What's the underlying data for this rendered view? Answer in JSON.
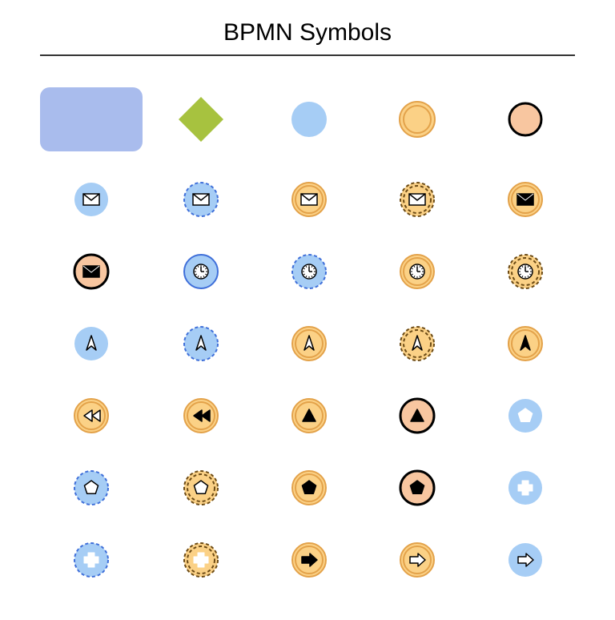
{
  "title": "BPMN Symbols",
  "colors": {
    "blue_fill": "#a9bced",
    "blue_bg": "#a6cdf5",
    "blue_stroke": "#3f6fd9",
    "green_fill": "#a7c23f",
    "orange_bg": "#fbd186",
    "orange_inner": "#fbd186",
    "orange_stroke": "#e3a24a",
    "peach_fill": "#f8c6a0",
    "black": "#000000",
    "white": "#ffffff"
  },
  "grid": {
    "cols": 5,
    "rows": 7,
    "row0_height": 110,
    "rowN_height": 90
  },
  "symbols": [
    [
      {
        "name": "task-activity",
        "type": "task",
        "fill": "#a9bced",
        "rx": 12,
        "w": 128,
        "h": 80
      },
      {
        "name": "gateway",
        "type": "diamond",
        "fill": "#a7c23f",
        "size": 56
      },
      {
        "name": "start-event",
        "type": "circle",
        "fill": "#a6cdf5",
        "stroke": null,
        "r": 22
      },
      {
        "name": "intermediate-event",
        "type": "double-circle",
        "fill": "#fbd186",
        "stroke": "#e3a24a",
        "r": 22,
        "inner_r": 17
      },
      {
        "name": "end-event",
        "type": "circle",
        "fill": "#f8c6a0",
        "stroke": "#000000",
        "stroke_w": 3,
        "r": 20
      }
    ],
    [
      {
        "name": "message-start",
        "type": "event",
        "bg": "blue",
        "border": "solid-faint",
        "icon": "envelope",
        "icon_fill": "#ffffff",
        "icon_stroke": "#000000"
      },
      {
        "name": "message-start-noninterrupt",
        "type": "event",
        "bg": "blue",
        "border": "dashed-blue",
        "icon": "envelope",
        "icon_fill": "#ffffff",
        "icon_stroke": "#000000"
      },
      {
        "name": "message-intermediate-catch",
        "type": "event",
        "bg": "orange",
        "border": "double-orange",
        "icon": "envelope",
        "icon_fill": "#ffffff",
        "icon_stroke": "#000000"
      },
      {
        "name": "message-intermediate-noninterrupt",
        "type": "event",
        "bg": "orange",
        "border": "double-dashed",
        "icon": "envelope",
        "icon_fill": "#ffffff",
        "icon_stroke": "#000000"
      },
      {
        "name": "message-intermediate-throw",
        "type": "event",
        "bg": "orange",
        "border": "double-orange",
        "icon": "envelope",
        "icon_fill": "#000000",
        "icon_stroke": "#000000"
      }
    ],
    [
      {
        "name": "message-end",
        "type": "event",
        "bg": "peach",
        "border": "solid-black-thick",
        "icon": "envelope",
        "icon_fill": "#000000",
        "icon_stroke": "#000000"
      },
      {
        "name": "timer-start",
        "type": "event",
        "bg": "blue",
        "border": "solid-blue",
        "icon": "clock",
        "icon_fill": "#ffffff",
        "icon_stroke": "#000000"
      },
      {
        "name": "timer-start-noninterrupt",
        "type": "event",
        "bg": "blue",
        "border": "dashed-blue",
        "icon": "clock",
        "icon_fill": "#ffffff",
        "icon_stroke": "#000000"
      },
      {
        "name": "timer-intermediate",
        "type": "event",
        "bg": "orange",
        "border": "double-orange",
        "icon": "clock",
        "icon_fill": "#ffffff",
        "icon_stroke": "#000000"
      },
      {
        "name": "timer-intermediate-noninterrupt",
        "type": "event",
        "bg": "orange",
        "border": "double-dashed",
        "icon": "clock",
        "icon_fill": "#ffffff",
        "icon_stroke": "#000000"
      }
    ],
    [
      {
        "name": "signal-start",
        "type": "event",
        "bg": "blue",
        "border": "solid-faint",
        "icon": "compass",
        "icon_fill": "#ffffff",
        "icon_stroke": "#000000"
      },
      {
        "name": "signal-start-noninterrupt",
        "type": "event",
        "bg": "blue",
        "border": "dashed-blue",
        "icon": "compass",
        "icon_fill": "#ffffff",
        "icon_stroke": "#000000"
      },
      {
        "name": "signal-intermediate-catch",
        "type": "event",
        "bg": "orange",
        "border": "double-orange",
        "icon": "compass",
        "icon_fill": "#ffffff",
        "icon_stroke": "#000000"
      },
      {
        "name": "signal-intermediate-noninterrupt",
        "type": "event",
        "bg": "orange",
        "border": "double-dashed",
        "icon": "compass",
        "icon_fill": "#ffffff",
        "icon_stroke": "#000000"
      },
      {
        "name": "signal-intermediate-throw",
        "type": "event",
        "bg": "orange",
        "border": "double-orange",
        "icon": "compass",
        "icon_fill": "#000000",
        "icon_stroke": "#000000"
      }
    ],
    [
      {
        "name": "compensation-catch",
        "type": "event",
        "bg": "orange",
        "border": "double-orange",
        "icon": "rewind",
        "icon_fill": "#ffffff",
        "icon_stroke": "#000000"
      },
      {
        "name": "compensation-throw",
        "type": "event",
        "bg": "orange",
        "border": "double-orange",
        "icon": "rewind",
        "icon_fill": "#000000",
        "icon_stroke": "#000000"
      },
      {
        "name": "escalation-throw",
        "type": "event",
        "bg": "orange",
        "border": "double-orange",
        "icon": "triangle-up",
        "icon_fill": "#000000",
        "icon_stroke": "#000000"
      },
      {
        "name": "escalation-end",
        "type": "event",
        "bg": "peach",
        "border": "solid-black-thick",
        "icon": "triangle-up",
        "icon_fill": "#000000",
        "icon_stroke": "#000000"
      },
      {
        "name": "multiple-start",
        "type": "event",
        "bg": "blue",
        "border": "solid-faint",
        "icon": "pentagon",
        "icon_fill": "#ffffff",
        "icon_stroke": "#ffffff"
      }
    ],
    [
      {
        "name": "multiple-start-noninterrupt",
        "type": "event",
        "bg": "blue",
        "border": "dashed-blue",
        "icon": "pentagon",
        "icon_fill": "#ffffff",
        "icon_stroke": "#000000"
      },
      {
        "name": "multiple-intermediate-noninterrupt",
        "type": "event",
        "bg": "orange",
        "border": "double-dashed",
        "icon": "pentagon",
        "icon_fill": "#ffffff",
        "icon_stroke": "#000000"
      },
      {
        "name": "multiple-intermediate-throw",
        "type": "event",
        "bg": "orange",
        "border": "double-orange",
        "icon": "pentagon",
        "icon_fill": "#000000",
        "icon_stroke": "#000000"
      },
      {
        "name": "multiple-end",
        "type": "event",
        "bg": "peach",
        "border": "solid-black-thick",
        "icon": "pentagon",
        "icon_fill": "#000000",
        "icon_stroke": "#000000"
      },
      {
        "name": "parallel-multiple-start-white",
        "type": "event",
        "bg": "blue",
        "border": "solid-faint",
        "icon": "plus",
        "icon_fill": "#ffffff",
        "icon_stroke": "#ffffff"
      }
    ],
    [
      {
        "name": "parallel-multiple-noninterrupt",
        "type": "event",
        "bg": "blue",
        "border": "dashed-blue",
        "icon": "plus",
        "icon_fill": "#ffffff",
        "icon_stroke": "#ffffff"
      },
      {
        "name": "parallel-multiple-intermediate-noninterrupt",
        "type": "event",
        "bg": "orange",
        "border": "double-dashed",
        "icon": "plus",
        "icon_fill": "#ffffff",
        "icon_stroke": "#ffffff"
      },
      {
        "name": "link-throw",
        "type": "event",
        "bg": "orange",
        "border": "double-orange",
        "icon": "arrow-right",
        "icon_fill": "#000000",
        "icon_stroke": "#000000"
      },
      {
        "name": "link-catch",
        "type": "event",
        "bg": "orange",
        "border": "double-orange",
        "icon": "arrow-right",
        "icon_fill": "#ffffff",
        "icon_stroke": "#000000"
      },
      {
        "name": "link-start",
        "type": "event",
        "bg": "blue",
        "border": "solid-faint",
        "icon": "arrow-right",
        "icon_fill": "#ffffff",
        "icon_stroke": "#000000"
      }
    ]
  ]
}
